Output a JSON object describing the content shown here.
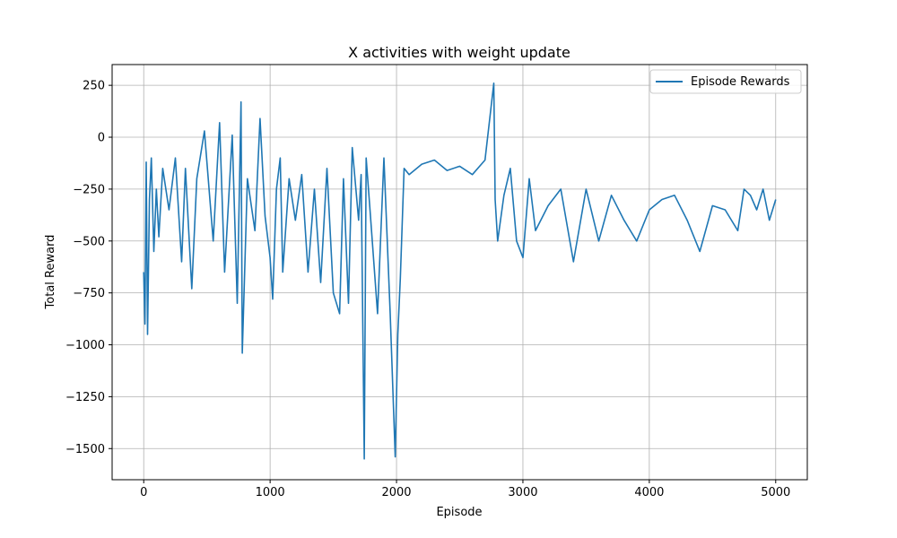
{
  "chart_data": {
    "type": "line",
    "title": "X activities with weight update",
    "xlabel": "Episode",
    "ylabel": "Total Reward",
    "xlim": [
      -250,
      5250
    ],
    "ylim": [
      -1650,
      350
    ],
    "xticks": [
      0,
      1000,
      2000,
      3000,
      4000,
      5000
    ],
    "yticks": [
      250,
      0,
      -250,
      -500,
      -750,
      -1000,
      -1250,
      -1500
    ],
    "xtick_labels": [
      "0",
      "1000",
      "2000",
      "3000",
      "4000",
      "5000"
    ],
    "ytick_labels": [
      "250",
      "0",
      "−250",
      "−500",
      "−750",
      "−1000",
      "−1250",
      "−1500"
    ],
    "grid": true,
    "legend_position": "top-right",
    "series": [
      {
        "name": "Episode Rewards",
        "color": "#1f77b4",
        "x": [
          0,
          10,
          20,
          30,
          45,
          60,
          80,
          100,
          120,
          150,
          200,
          250,
          300,
          330,
          380,
          420,
          480,
          550,
          600,
          640,
          700,
          740,
          770,
          780,
          820,
          880,
          920,
          960,
          1000,
          1020,
          1050,
          1080,
          1100,
          1150,
          1200,
          1250,
          1300,
          1350,
          1400,
          1450,
          1500,
          1550,
          1580,
          1620,
          1650,
          1700,
          1720,
          1745,
          1760,
          1790,
          1850,
          1900,
          1950,
          1990,
          2010,
          2030,
          2060,
          2100,
          2200,
          2300,
          2400,
          2500,
          2600,
          2700,
          2770,
          2780,
          2800,
          2850,
          2900,
          2950,
          3000,
          3050,
          3100,
          3200,
          3300,
          3400,
          3500,
          3600,
          3700,
          3800,
          3900,
          4000,
          4100,
          4200,
          4300,
          4400,
          4500,
          4600,
          4700,
          4750,
          4800,
          4850,
          4900,
          4950,
          5000
        ],
        "values": [
          -650,
          -900,
          -120,
          -950,
          -300,
          -100,
          -550,
          -250,
          -480,
          -150,
          -350,
          -100,
          -600,
          -150,
          -730,
          -200,
          30,
          -500,
          70,
          -650,
          10,
          -800,
          170,
          -1040,
          -200,
          -450,
          90,
          -380,
          -580,
          -780,
          -250,
          -100,
          -650,
          -200,
          -400,
          -180,
          -650,
          -250,
          -700,
          -150,
          -750,
          -850,
          -200,
          -800,
          -50,
          -400,
          -180,
          -1550,
          -100,
          -350,
          -850,
          -100,
          -850,
          -1540,
          -950,
          -680,
          -150,
          -180,
          -130,
          -110,
          -160,
          -140,
          -180,
          -110,
          260,
          -300,
          -500,
          -280,
          -150,
          -500,
          -580,
          -200,
          -450,
          -330,
          -250,
          -600,
          -250,
          -500,
          -280,
          -400,
          -500,
          -350,
          -300,
          -280,
          -400,
          -550,
          -330,
          -350,
          -450,
          -250,
          -280,
          -350,
          -250,
          -400,
          -300
        ]
      }
    ]
  }
}
